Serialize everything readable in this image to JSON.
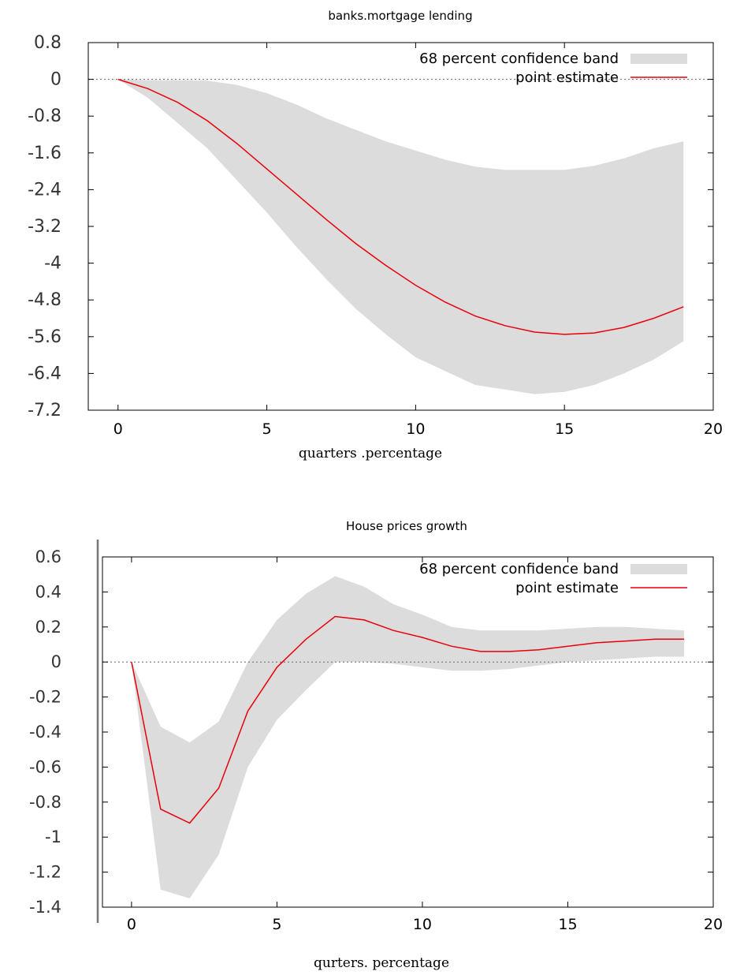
{
  "chart_data": [
    {
      "type": "area",
      "title": "banks.mortgage lending",
      "xlabel": "quarters .percentage",
      "ylabel": "",
      "xlim": [
        -1,
        20
      ],
      "ylim": [
        -7.2,
        0.8
      ],
      "xticks": [
        0,
        5,
        10,
        15,
        20
      ],
      "xtick_labels": [
        "0",
        "5",
        "10",
        "15",
        "20"
      ],
      "yticks": [
        0.8,
        0,
        -0.8,
        -1.6,
        -2.4,
        -3.2,
        -4,
        -4.8,
        -5.6,
        -6.4,
        -7.2
      ],
      "ytick_labels": [
        "0.8",
        "0",
        "-0.8",
        "-1.6",
        "-2.4",
        "-3.2",
        "-4",
        "-4.8",
        "-5.6",
        "-6.4",
        "-7.2"
      ],
      "zero_line": true,
      "legend_position": "top-right",
      "legend": {
        "band": "68 percent confidence band",
        "line": "point estimate"
      },
      "colors": {
        "band": "#dcdcdc",
        "line": "#e8000b",
        "zero": "#666666",
        "axis": "#000000"
      },
      "x": [
        0,
        1,
        2,
        3,
        4,
        5,
        6,
        7,
        8,
        9,
        10,
        11,
        12,
        13,
        14,
        15,
        16,
        17,
        18,
        19
      ],
      "series": [
        {
          "name": "68 percent confidence band",
          "kind": "band",
          "lower": [
            0,
            -0.4,
            -0.95,
            -1.5,
            -2.2,
            -2.9,
            -3.65,
            -4.35,
            -5.0,
            -5.55,
            -6.05,
            -6.35,
            -6.65,
            -6.75,
            -6.85,
            -6.8,
            -6.65,
            -6.4,
            -6.1,
            -5.7
          ],
          "upper": [
            0,
            -0.02,
            -0.02,
            -0.03,
            -0.12,
            -0.3,
            -0.55,
            -0.85,
            -1.1,
            -1.35,
            -1.55,
            -1.75,
            -1.9,
            -1.97,
            -1.97,
            -1.97,
            -1.88,
            -1.72,
            -1.5,
            -1.35
          ]
        },
        {
          "name": "point estimate",
          "kind": "line",
          "values": [
            0,
            -0.2,
            -0.5,
            -0.9,
            -1.4,
            -1.95,
            -2.5,
            -3.05,
            -3.58,
            -4.05,
            -4.48,
            -4.85,
            -5.15,
            -5.36,
            -5.5,
            -5.55,
            -5.52,
            -5.4,
            -5.2,
            -4.95
          ]
        }
      ]
    },
    {
      "type": "area",
      "title": "House prices growth",
      "xlabel": "qurters. percentage",
      "ylabel": "",
      "xlim": [
        -1,
        20
      ],
      "ylim": [
        -1.4,
        0.6
      ],
      "xticks": [
        0,
        5,
        10,
        15,
        20
      ],
      "xtick_labels": [
        "0",
        "5",
        "10",
        "15",
        "20"
      ],
      "yticks": [
        0.6,
        0.4,
        0.2,
        0,
        -0.2,
        -0.4,
        -0.6,
        -0.8,
        -1,
        -1.2,
        -1.4
      ],
      "ytick_labels": [
        "0.6",
        "0.4",
        "0.2",
        "0",
        "-0.2",
        "-0.4",
        "-0.6",
        "-0.8",
        "-1",
        "-1.2",
        "-1.4"
      ],
      "zero_line": true,
      "legend_position": "top-right",
      "legend": {
        "band": "68 percent confidence band",
        "line": "point estimate"
      },
      "colors": {
        "band": "#dcdcdc",
        "line": "#e8000b",
        "zero": "#666666",
        "axis": "#000000"
      },
      "x": [
        0,
        1,
        2,
        3,
        4,
        5,
        6,
        7,
        8,
        9,
        10,
        11,
        12,
        13,
        14,
        15,
        16,
        17,
        18,
        19
      ],
      "series": [
        {
          "name": "68 percent confidence band",
          "kind": "band",
          "lower": [
            0,
            -1.3,
            -1.35,
            -1.1,
            -0.6,
            -0.33,
            -0.16,
            0.0,
            0.0,
            -0.01,
            -0.03,
            -0.05,
            -0.05,
            -0.04,
            -0.02,
            0.0,
            0.01,
            0.02,
            0.03,
            0.03
          ],
          "upper": [
            0,
            -0.37,
            -0.46,
            -0.34,
            0.0,
            0.24,
            0.39,
            0.49,
            0.43,
            0.33,
            0.27,
            0.2,
            0.18,
            0.18,
            0.18,
            0.19,
            0.2,
            0.2,
            0.19,
            0.18
          ]
        },
        {
          "name": "point estimate",
          "kind": "line",
          "values": [
            0,
            -0.84,
            -0.92,
            -0.72,
            -0.28,
            -0.03,
            0.13,
            0.26,
            0.24,
            0.18,
            0.14,
            0.09,
            0.06,
            0.06,
            0.07,
            0.09,
            0.11,
            0.12,
            0.13,
            0.13
          ]
        }
      ]
    }
  ]
}
